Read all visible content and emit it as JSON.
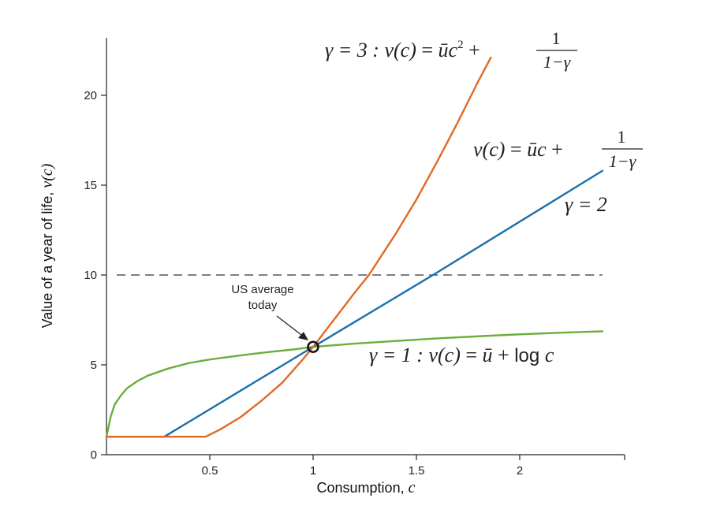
{
  "chart_data": {
    "type": "line",
    "xlabel": "Consumption, ",
    "xlabel_var": "c",
    "ylabel": "Value of a year of life, ",
    "ylabel_var": "v(c)",
    "xlim": [
      0,
      2.5
    ],
    "ylim": [
      0,
      22
    ],
    "x_ticks": [
      0.5,
      1,
      1.5,
      2
    ],
    "x_tick_labels": [
      "0.5",
      "1",
      "1.5",
      "2"
    ],
    "y_ticks": [
      0,
      5,
      10,
      15,
      20
    ],
    "y_tick_labels": [
      "0",
      "5",
      "10",
      "15",
      "20"
    ],
    "grid": false,
    "reference_line": {
      "y": 10,
      "style": "dashed",
      "color": "#333333"
    },
    "series": [
      {
        "name": "γ = 3",
        "color": "#E06A24",
        "x": [
          0,
          0.48,
          0.55,
          0.65,
          0.75,
          0.85,
          0.95,
          1.0,
          1.1,
          1.2,
          1.27,
          1.4,
          1.5,
          1.6,
          1.7,
          1.8,
          1.86
        ],
        "y": [
          1,
          1,
          1.4,
          2.1,
          3.0,
          4.0,
          5.3,
          6.0,
          7.5,
          9.0,
          10.0,
          12.3,
          14.2,
          16.3,
          18.5,
          20.8,
          22.1
        ]
      },
      {
        "name": "γ = 2",
        "color": "#1A6FAD",
        "x": [
          0,
          0.28,
          1.0,
          1.58,
          2.4
        ],
        "y": [
          1,
          1,
          6.0,
          10.0,
          15.8
        ]
      },
      {
        "name": "γ = 1",
        "color": "#6AAE3C",
        "x": [
          0,
          0.02,
          0.04,
          0.07,
          0.1,
          0.15,
          0.2,
          0.3,
          0.4,
          0.5,
          0.6,
          0.7,
          0.8,
          0.9,
          1.0,
          1.2,
          1.4,
          1.6,
          1.8,
          2.0,
          2.2,
          2.4
        ],
        "y": [
          1,
          2.1,
          2.8,
          3.3,
          3.7,
          4.1,
          4.4,
          4.8,
          5.1,
          5.3,
          5.45,
          5.6,
          5.73,
          5.85,
          6.0,
          6.18,
          6.33,
          6.47,
          6.59,
          6.7,
          6.79,
          6.87
        ]
      }
    ],
    "marker": {
      "x": 1,
      "y": 6,
      "label_line1": "US average",
      "label_line2": "today"
    },
    "annotations": {
      "gamma3": {
        "left": "γ  = 3 : ",
        "v": "v(c)",
        "eq": " = ",
        "u": "ū",
        "c": "c",
        "sup": "2",
        "plus": " + ",
        "num": "1",
        "den": "1−γ"
      },
      "linear": {
        "v": "v(c)",
        "eq": " = ",
        "u": "ū",
        "c": "c",
        "plus": " + ",
        "num": "1",
        "den": "1−γ"
      },
      "gamma2": "γ  = 2",
      "gamma1": {
        "left": "γ  = 1 : ",
        "v": "v(c)",
        "eq": " = ",
        "u": "ū",
        "plus": " + ",
        "log": "log ",
        "c": "c"
      }
    }
  }
}
